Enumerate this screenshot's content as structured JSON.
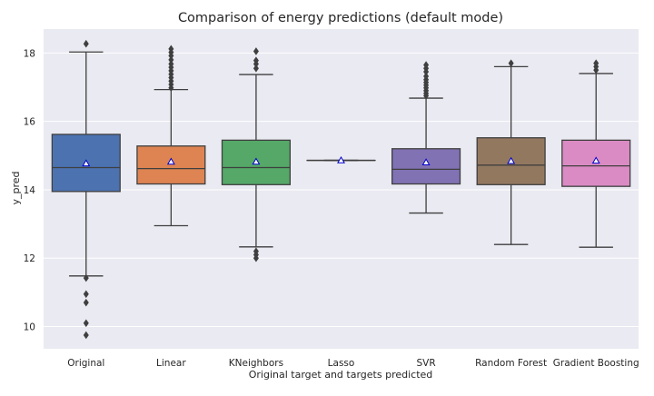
{
  "chart_data": {
    "type": "box",
    "title": "Comparison of energy predictions (default mode)",
    "xlabel": "Original target and targets predicted",
    "ylabel": "y_pred",
    "ylim": [
      9.35,
      18.7
    ],
    "yticks": [
      10,
      12,
      14,
      16,
      18
    ],
    "grid": true,
    "background_color": "#eaeaf2",
    "grid_color": "#ffffff",
    "mean_marker_color": "#0000cc",
    "categories": [
      "Original",
      "Linear",
      "KNeighbors",
      "Lasso",
      "SVR",
      "Random Forest",
      "Gradient Boosting"
    ],
    "boxes": [
      {
        "category": "Original",
        "color": "#4c72b0",
        "whisker_low": 11.48,
        "q1": 13.95,
        "median": 14.65,
        "q3": 15.62,
        "whisker_high": 18.03,
        "mean": 14.77,
        "outliers": [
          18.27,
          11.42,
          10.95,
          10.7,
          10.1,
          9.75
        ]
      },
      {
        "category": "Linear",
        "color": "#dd8452",
        "whisker_low": 12.95,
        "q1": 14.17,
        "median": 14.62,
        "q3": 15.28,
        "whisker_high": 16.93,
        "mean": 14.82,
        "outliers": [
          16.98,
          17.08,
          17.18,
          17.28,
          17.38,
          17.48,
          17.58,
          17.68,
          17.8,
          17.92,
          18.02,
          18.12
        ]
      },
      {
        "category": "KNeighbors",
        "color": "#55a868",
        "whisker_low": 12.33,
        "q1": 14.15,
        "median": 14.65,
        "q3": 15.45,
        "whisker_high": 17.37,
        "mean": 14.82,
        "outliers": [
          17.55,
          17.68,
          17.78,
          18.05,
          12.2,
          12.1,
          12.0
        ]
      },
      {
        "category": "Lasso",
        "color": "#c44e52",
        "whisker_low": 14.86,
        "q1": 14.86,
        "median": 14.86,
        "q3": 14.86,
        "whisker_high": 14.86,
        "mean": 14.86,
        "outliers": []
      },
      {
        "category": "SVR",
        "color": "#8172b3",
        "whisker_low": 13.32,
        "q1": 14.17,
        "median": 14.6,
        "q3": 15.2,
        "whisker_high": 16.68,
        "mean": 14.8,
        "outliers": [
          16.75,
          16.82,
          16.9,
          16.98,
          17.06,
          17.14,
          17.22,
          17.32,
          17.45,
          17.55,
          17.65
        ]
      },
      {
        "category": "Random Forest",
        "color": "#937860",
        "whisker_low": 12.4,
        "q1": 14.15,
        "median": 14.72,
        "q3": 15.52,
        "whisker_high": 17.6,
        "mean": 14.84,
        "outliers": [
          17.7
        ]
      },
      {
        "category": "Gradient Boosting",
        "color": "#da8bc3",
        "whisker_low": 12.32,
        "q1": 14.1,
        "median": 14.7,
        "q3": 15.45,
        "whisker_high": 17.4,
        "mean": 14.85,
        "outliers": [
          17.5,
          17.6,
          17.7
        ]
      }
    ]
  }
}
